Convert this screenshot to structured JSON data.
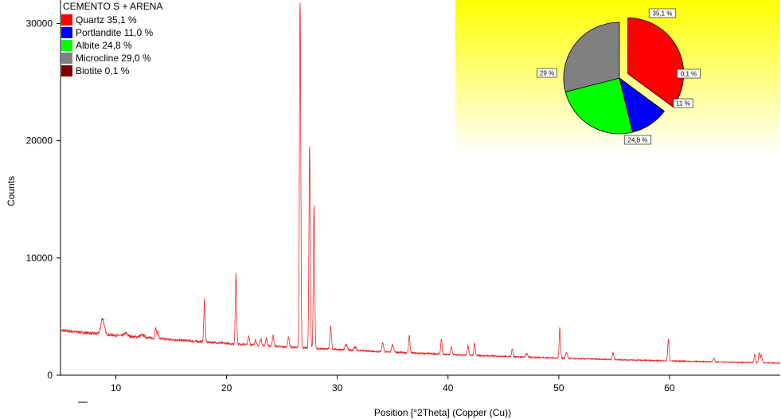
{
  "chart_data": {
    "type": "line",
    "xlabel": "Position [°2Theta] (Copper (Cu))",
    "ylabel": "Counts",
    "xlim": [
      5,
      70
    ],
    "ylim": [
      0,
      32000
    ],
    "xticks": [
      10,
      20,
      30,
      40,
      50,
      60
    ],
    "yticks": [
      0,
      10000,
      20000,
      30000
    ],
    "xtick_labels": [
      "10",
      "20",
      "30",
      "40",
      "50",
      "60"
    ],
    "ytick_labels": [
      "0",
      "10000",
      "20000",
      "30000"
    ],
    "grid": false,
    "line_color": "#e8262a",
    "background": [
      5,
      3360
    ],
    "peaks": [
      [
        8.8,
        1350,
        0.15
      ],
      [
        10.9,
        250,
        0.15
      ],
      [
        12.4,
        200,
        0.2
      ],
      [
        13.6,
        900,
        0.06
      ],
      [
        13.8,
        700,
        0.06
      ],
      [
        18.0,
        3600,
        0.06
      ],
      [
        20.85,
        6000,
        0.06
      ],
      [
        22.0,
        750,
        0.07
      ],
      [
        22.6,
        450,
        0.07
      ],
      [
        23.1,
        550,
        0.07
      ],
      [
        23.6,
        650,
        0.07
      ],
      [
        24.2,
        900,
        0.07
      ],
      [
        25.6,
        850,
        0.07
      ],
      [
        26.64,
        29800,
        0.06
      ],
      [
        27.5,
        17000,
        0.06
      ],
      [
        27.9,
        12400,
        0.06
      ],
      [
        29.4,
        2000,
        0.07
      ],
      [
        30.8,
        500,
        0.1
      ],
      [
        31.6,
        300,
        0.1
      ],
      [
        34.1,
        750,
        0.08
      ],
      [
        35.0,
        600,
        0.1
      ],
      [
        36.5,
        1450,
        0.06
      ],
      [
        39.4,
        1300,
        0.06
      ],
      [
        40.3,
        700,
        0.06
      ],
      [
        41.8,
        800,
        0.06
      ],
      [
        42.4,
        1000,
        0.06
      ],
      [
        45.8,
        700,
        0.06
      ],
      [
        47.1,
        300,
        0.08
      ],
      [
        50.1,
        2600,
        0.06
      ],
      [
        50.7,
        500,
        0.08
      ],
      [
        54.9,
        600,
        0.06
      ],
      [
        59.9,
        1900,
        0.06
      ],
      [
        64.0,
        300,
        0.08
      ],
      [
        67.7,
        700,
        0.06
      ],
      [
        68.1,
        850,
        0.06
      ],
      [
        68.3,
        700,
        0.06
      ]
    ],
    "legend": {
      "title": "CEMENTO S + ARENA",
      "placement": "top-left",
      "entries": [
        {
          "label": "Quartz 35,1 %",
          "color": "#ff0000"
        },
        {
          "label": "Portlandite 11,0 %",
          "color": "#0000ff"
        },
        {
          "label": "Albite 24,8 %",
          "color": "#00ff00"
        },
        {
          "label": "Microcline 29,0 %",
          "color": "#808080"
        },
        {
          "label": "Biotite 0,1 %",
          "color": "#800000"
        }
      ]
    },
    "pie": {
      "type": "pie",
      "placement": "top-right",
      "background_gradient": [
        "#ffff00",
        "#ffffff"
      ],
      "slices": [
        {
          "name": "Quartz",
          "value": 35.1,
          "label": "35,1 %",
          "color": "#ff0000",
          "exploded": true
        },
        {
          "name": "Biotite",
          "value": 0.1,
          "label": "0,1 %",
          "color": "#800000",
          "exploded": false
        },
        {
          "name": "Portlandite",
          "value": 11.0,
          "label": "11 %",
          "color": "#0000ff",
          "exploded": false
        },
        {
          "name": "Albite",
          "value": 24.8,
          "label": "24,8 %",
          "color": "#00ff00",
          "exploded": false
        },
        {
          "name": "Microcline",
          "value": 29.0,
          "label": "29 %",
          "color": "#808080",
          "exploded": false
        }
      ]
    }
  }
}
